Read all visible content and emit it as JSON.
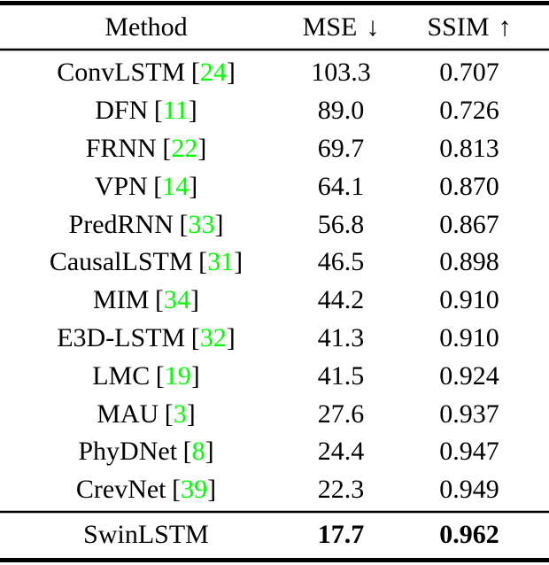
{
  "header": {
    "method": {
      "label": "Method"
    },
    "mse": {
      "label": "MSE",
      "arrow": "↓"
    },
    "ssim": {
      "label": "SSIM",
      "arrow": "↑"
    }
  },
  "punctuation": {
    "open_bracket": "[",
    "close_bracket": "]"
  },
  "rows": [
    {
      "method": "ConvLSTM",
      "cite": "24",
      "mse": "103.3",
      "ssim": "0.707"
    },
    {
      "method": "DFN",
      "cite": "11",
      "mse": "89.0",
      "ssim": "0.726"
    },
    {
      "method": "FRNN",
      "cite": "22",
      "mse": "69.7",
      "ssim": "0.813"
    },
    {
      "method": "VPN",
      "cite": "14",
      "mse": "64.1",
      "ssim": "0.870"
    },
    {
      "method": "PredRNN",
      "cite": "33",
      "mse": "56.8",
      "ssim": "0.867"
    },
    {
      "method": "CausalLSTM",
      "cite": "31",
      "mse": "46.5",
      "ssim": "0.898"
    },
    {
      "method": "MIM",
      "cite": "34",
      "mse": "44.2",
      "ssim": "0.910"
    },
    {
      "method": "E3D-LSTM",
      "cite": "32",
      "mse": "41.3",
      "ssim": "0.910"
    },
    {
      "method": "LMC",
      "cite": "19",
      "mse": "41.5",
      "ssim": "0.924"
    },
    {
      "method": "MAU",
      "cite": "3",
      "mse": "27.6",
      "ssim": "0.937"
    },
    {
      "method": "PhyDNet",
      "cite": "8",
      "mse": "24.4",
      "ssim": "0.947"
    },
    {
      "method": "CrevNet",
      "cite": "39",
      "mse": "22.3",
      "ssim": "0.949"
    }
  ],
  "highlight_row": {
    "method": "SwinLSTM",
    "mse": "17.7",
    "ssim": "0.962"
  },
  "colors": {
    "citation_green": "#00FF00",
    "rule_black": "#000000"
  }
}
